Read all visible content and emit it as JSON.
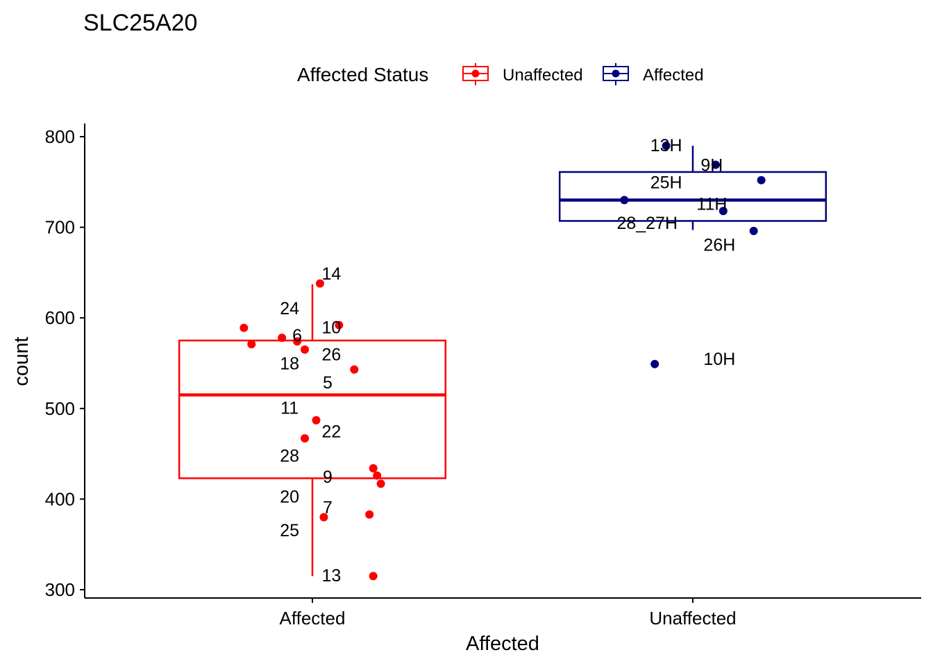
{
  "chart_data": {
    "type": "boxplot",
    "title": "SLC25A20",
    "xlabel": "Affected",
    "ylabel": "count",
    "categories": [
      "Affected",
      "Unaffected"
    ],
    "ylim": [
      292,
      815
    ],
    "yticks": [
      300,
      400,
      500,
      600,
      700,
      800
    ],
    "grid": false,
    "legend": {
      "title": "Affected Status",
      "placement": "top",
      "entries": [
        {
          "label": "Unaffected",
          "color": "#ff0000"
        },
        {
          "label": "Affected",
          "color": "#000080"
        }
      ]
    },
    "boxes": [
      {
        "category": "Affected",
        "series": "Unaffected",
        "color": "#ff0000",
        "whisker_low": 315,
        "q1": 423,
        "median": 515,
        "q3": 575,
        "whisker_high": 637
      },
      {
        "category": "Unaffected",
        "series": "Affected",
        "color": "#000080",
        "whisker_low": 697,
        "q1": 707,
        "median": 730,
        "q3": 761,
        "whisker_high": 790
      }
    ],
    "points": [
      {
        "category": "Affected",
        "jitter": 0.02,
        "y": 638,
        "color": "#ff0000"
      },
      {
        "category": "Affected",
        "jitter": 0.07,
        "y": 592,
        "color": "#ff0000"
      },
      {
        "category": "Affected",
        "jitter": -0.18,
        "y": 589,
        "color": "#ff0000"
      },
      {
        "category": "Affected",
        "jitter": -0.08,
        "y": 578,
        "color": "#ff0000"
      },
      {
        "category": "Affected",
        "jitter": -0.04,
        "y": 574,
        "color": "#ff0000"
      },
      {
        "category": "Affected",
        "jitter": -0.16,
        "y": 571,
        "color": "#ff0000"
      },
      {
        "category": "Affected",
        "jitter": -0.02,
        "y": 565,
        "color": "#ff0000"
      },
      {
        "category": "Affected",
        "jitter": 0.11,
        "y": 543,
        "color": "#ff0000"
      },
      {
        "category": "Affected",
        "jitter": 0.01,
        "y": 487,
        "color": "#ff0000"
      },
      {
        "category": "Affected",
        "jitter": -0.02,
        "y": 467,
        "color": "#ff0000"
      },
      {
        "category": "Affected",
        "jitter": 0.16,
        "y": 434,
        "color": "#ff0000"
      },
      {
        "category": "Affected",
        "jitter": 0.17,
        "y": 426,
        "color": "#ff0000"
      },
      {
        "category": "Affected",
        "jitter": 0.18,
        "y": 417,
        "color": "#ff0000"
      },
      {
        "category": "Affected",
        "jitter": 0.15,
        "y": 383,
        "color": "#ff0000"
      },
      {
        "category": "Affected",
        "jitter": 0.03,
        "y": 380,
        "color": "#ff0000"
      },
      {
        "category": "Affected",
        "jitter": 0.16,
        "y": 315,
        "color": "#ff0000"
      },
      {
        "category": "Unaffected",
        "jitter": -0.07,
        "y": 790,
        "color": "#000080"
      },
      {
        "category": "Unaffected",
        "jitter": 0.06,
        "y": 769,
        "color": "#000080"
      },
      {
        "category": "Unaffected",
        "jitter": 0.18,
        "y": 752,
        "color": "#000080"
      },
      {
        "category": "Unaffected",
        "jitter": -0.18,
        "y": 730,
        "color": "#000080"
      },
      {
        "category": "Unaffected",
        "jitter": 0.08,
        "y": 718,
        "color": "#000080"
      },
      {
        "category": "Unaffected",
        "jitter": 0.16,
        "y": 696,
        "color": "#000080"
      },
      {
        "category": "Unaffected",
        "jitter": -0.1,
        "y": 549,
        "color": "#000080"
      }
    ],
    "annotations": [
      {
        "text": "14",
        "category": "Affected",
        "offset": 0.05,
        "y": 649
      },
      {
        "text": "24",
        "category": "Affected",
        "offset": -0.06,
        "y": 611
      },
      {
        "text": "6",
        "category": "Affected",
        "offset": -0.04,
        "y": 581
      },
      {
        "text": "10",
        "category": "Affected",
        "offset": 0.05,
        "y": 590
      },
      {
        "text": "26",
        "category": "Affected",
        "offset": 0.05,
        "y": 560
      },
      {
        "text": "18",
        "category": "Affected",
        "offset": -0.06,
        "y": 550
      },
      {
        "text": "5",
        "category": "Affected",
        "offset": 0.04,
        "y": 529
      },
      {
        "text": "11",
        "category": "Affected",
        "offset": -0.06,
        "y": 501
      },
      {
        "text": "22",
        "category": "Affected",
        "offset": 0.05,
        "y": 475
      },
      {
        "text": "28",
        "category": "Affected",
        "offset": -0.06,
        "y": 448
      },
      {
        "text": "9",
        "category": "Affected",
        "offset": 0.04,
        "y": 425
      },
      {
        "text": "20",
        "category": "Affected",
        "offset": -0.06,
        "y": 403
      },
      {
        "text": "7",
        "category": "Affected",
        "offset": 0.04,
        "y": 391
      },
      {
        "text": "25",
        "category": "Affected",
        "offset": -0.06,
        "y": 366
      },
      {
        "text": "13",
        "category": "Affected",
        "offset": 0.05,
        "y": 316
      },
      {
        "text": "13H",
        "category": "Unaffected",
        "offset": -0.07,
        "y": 791
      },
      {
        "text": "9H",
        "category": "Unaffected",
        "offset": 0.05,
        "y": 769
      },
      {
        "text": "25H",
        "category": "Unaffected",
        "offset": -0.07,
        "y": 750
      },
      {
        "text": "11H",
        "category": "Unaffected",
        "offset": 0.05,
        "y": 726
      },
      {
        "text": "28_27H",
        "category": "Unaffected",
        "offset": -0.12,
        "y": 705
      },
      {
        "text": "26H",
        "category": "Unaffected",
        "offset": 0.07,
        "y": 681
      },
      {
        "text": "10H",
        "category": "Unaffected",
        "offset": 0.07,
        "y": 555
      }
    ]
  }
}
